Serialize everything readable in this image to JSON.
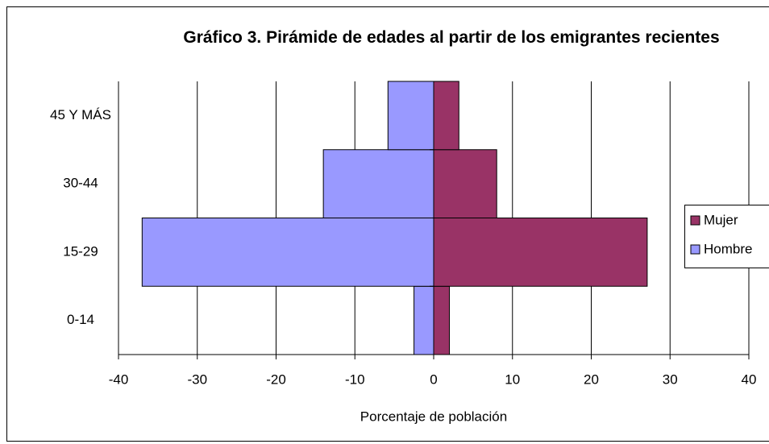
{
  "chart_data": {
    "type": "pyramid",
    "title": "Gráfico 3. Pirámide de edades al partir de los emigrantes recientes",
    "x_label": "Porcentaje de población",
    "categories": [
      "0-14",
      "15-29",
      "30-44",
      "45 Y MÁS"
    ],
    "series": [
      {
        "name": "Mujer",
        "color": "#993366",
        "values": [
          2,
          27.1,
          8,
          3.2
        ]
      },
      {
        "name": "Hombre",
        "color": "#9999ff",
        "values": [
          -2.5,
          -37,
          -14,
          -5.8
        ]
      }
    ],
    "xlim": [
      -40,
      40
    ],
    "xticks": [
      -40,
      -30,
      -20,
      -10,
      0,
      10,
      20,
      30,
      40
    ],
    "grid": true,
    "legend": "right"
  }
}
